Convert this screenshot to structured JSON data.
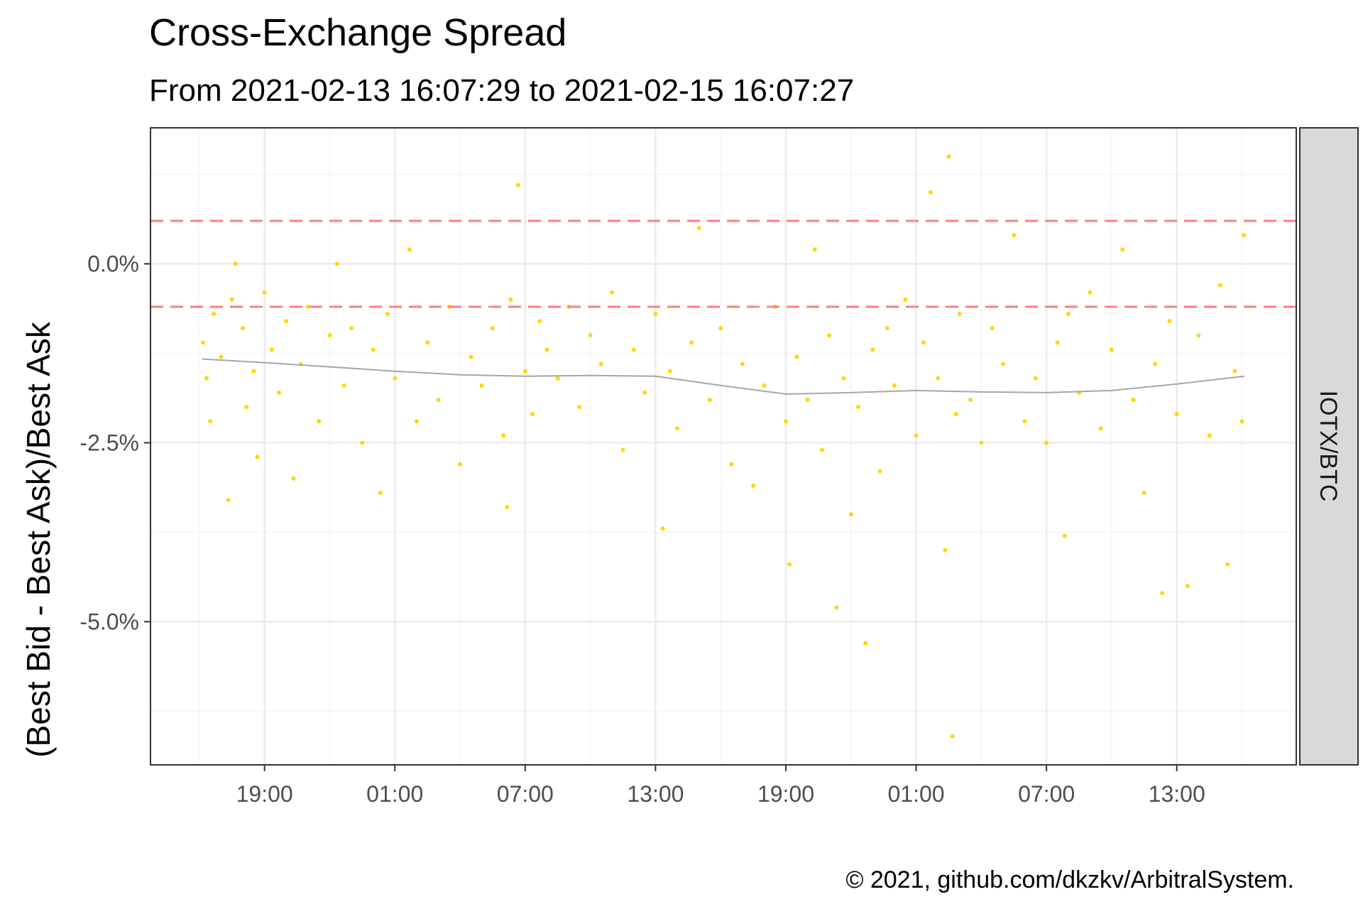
{
  "chart_data": {
    "type": "scatter",
    "title": "Cross-Exchange Spread",
    "subtitle": "From 2021-02-13 16:07:29 to 2021-02-15 16:07:27",
    "xlabel": "",
    "ylabel": "(Best Bid - Best Ask)/Best Ask",
    "facet_label": "IOTX/BTC",
    "caption": "© 2021, github.com/dkzkv/ArbitralSystem.",
    "x_start": "2021-02-13 16:07:29",
    "x_end": "2021-02-15 16:07:27",
    "x_range": [
      "2021-02-13 13:45",
      "2021-02-15 18:30"
    ],
    "y_range": [
      -7.0,
      1.9
    ],
    "y_ticks": [
      {
        "value": 0.0,
        "label": "0.0%"
      },
      {
        "value": -2.5,
        "label": "-2.5%"
      },
      {
        "value": -5.0,
        "label": "-5.0%"
      }
    ],
    "x_ticks": [
      {
        "time": "2021-02-13 19:00",
        "label": "19:00"
      },
      {
        "time": "2021-02-14 01:00",
        "label": "01:00"
      },
      {
        "time": "2021-02-14 07:00",
        "label": "07:00"
      },
      {
        "time": "2021-02-14 13:00",
        "label": "13:00"
      },
      {
        "time": "2021-02-14 19:00",
        "label": "19:00"
      },
      {
        "time": "2021-02-15 01:00",
        "label": "01:00"
      },
      {
        "time": "2021-02-15 07:00",
        "label": "07:00"
      },
      {
        "time": "2021-02-15 13:00",
        "label": "13:00"
      }
    ],
    "reference_lines": [
      0.6,
      -0.6
    ],
    "point_color": "#FFD700",
    "smooth_color": "#a6a6a6",
    "reference_color": "#ff7f7f",
    "grid": true,
    "legend": "none",
    "smooth": [
      {
        "time": "2021-02-13 16:07",
        "value": -1.33
      },
      {
        "time": "2021-02-13 19:00",
        "value": -1.38
      },
      {
        "time": "2021-02-13 22:00",
        "value": -1.44
      },
      {
        "time": "2021-02-14 01:00",
        "value": -1.5
      },
      {
        "time": "2021-02-14 04:00",
        "value": -1.55
      },
      {
        "time": "2021-02-14 07:00",
        "value": -1.57
      },
      {
        "time": "2021-02-14 10:00",
        "value": -1.56
      },
      {
        "time": "2021-02-14 13:00",
        "value": -1.57
      },
      {
        "time": "2021-02-14 16:00",
        "value": -1.7
      },
      {
        "time": "2021-02-14 19:00",
        "value": -1.82
      },
      {
        "time": "2021-02-14 22:00",
        "value": -1.8
      },
      {
        "time": "2021-02-15 01:00",
        "value": -1.77
      },
      {
        "time": "2021-02-15 04:00",
        "value": -1.79
      },
      {
        "time": "2021-02-15 07:00",
        "value": -1.8
      },
      {
        "time": "2021-02-15 10:00",
        "value": -1.77
      },
      {
        "time": "2021-02-15 13:00",
        "value": -1.68
      },
      {
        "time": "2021-02-15 16:07",
        "value": -1.57
      }
    ],
    "series": [
      {
        "points": [
          [
            "2021-02-13 16:10",
            -1.1
          ],
          [
            "2021-02-13 16:20",
            -1.6
          ],
          [
            "2021-02-13 16:30",
            -2.2
          ],
          [
            "2021-02-13 16:40",
            -0.7
          ],
          [
            "2021-02-13 17:00",
            -1.3
          ],
          [
            "2021-02-13 17:20",
            -3.3
          ],
          [
            "2021-02-13 17:30",
            -0.5
          ],
          [
            "2021-02-13 17:40",
            0.0
          ],
          [
            "2021-02-13 18:00",
            -0.9
          ],
          [
            "2021-02-13 18:10",
            -2.0
          ],
          [
            "2021-02-13 18:30",
            -1.5
          ],
          [
            "2021-02-13 18:40",
            -2.7
          ],
          [
            "2021-02-13 19:00",
            -0.4
          ],
          [
            "2021-02-13 19:20",
            -1.2
          ],
          [
            "2021-02-13 19:40",
            -1.8
          ],
          [
            "2021-02-13 20:00",
            -0.8
          ],
          [
            "2021-02-13 20:20",
            -3.0
          ],
          [
            "2021-02-13 20:40",
            -1.4
          ],
          [
            "2021-02-13 21:00",
            -0.6
          ],
          [
            "2021-02-13 21:30",
            -2.2
          ],
          [
            "2021-02-13 22:00",
            -1.0
          ],
          [
            "2021-02-13 22:20",
            0.0
          ],
          [
            "2021-02-13 22:40",
            -1.7
          ],
          [
            "2021-02-13 23:00",
            -0.9
          ],
          [
            "2021-02-13 23:30",
            -2.5
          ],
          [
            "2021-02-14 00:00",
            -1.2
          ],
          [
            "2021-02-14 00:20",
            -3.2
          ],
          [
            "2021-02-14 00:40",
            -0.7
          ],
          [
            "2021-02-14 01:00",
            -1.6
          ],
          [
            "2021-02-14 01:40",
            0.2
          ],
          [
            "2021-02-14 02:00",
            -2.2
          ],
          [
            "2021-02-14 02:30",
            -1.1
          ],
          [
            "2021-02-14 03:00",
            -1.9
          ],
          [
            "2021-02-14 03:30",
            -0.6
          ],
          [
            "2021-02-14 04:00",
            -2.8
          ],
          [
            "2021-02-14 04:30",
            -1.3
          ],
          [
            "2021-02-14 05:00",
            -1.7
          ],
          [
            "2021-02-14 05:30",
            -0.9
          ],
          [
            "2021-02-14 06:00",
            -2.4
          ],
          [
            "2021-02-14 06:10",
            -3.4
          ],
          [
            "2021-02-14 06:20",
            -0.5
          ],
          [
            "2021-02-14 06:40",
            1.1
          ],
          [
            "2021-02-14 07:00",
            -1.5
          ],
          [
            "2021-02-14 07:20",
            -2.1
          ],
          [
            "2021-02-14 07:40",
            -0.8
          ],
          [
            "2021-02-14 08:00",
            -1.2
          ],
          [
            "2021-02-14 08:30",
            -1.6
          ],
          [
            "2021-02-14 09:00",
            -0.6
          ],
          [
            "2021-02-14 09:30",
            -2.0
          ],
          [
            "2021-02-14 10:00",
            -1.0
          ],
          [
            "2021-02-14 10:30",
            -1.4
          ],
          [
            "2021-02-14 11:00",
            -0.4
          ],
          [
            "2021-02-14 11:30",
            -2.6
          ],
          [
            "2021-02-14 12:00",
            -1.2
          ],
          [
            "2021-02-14 12:30",
            -1.8
          ],
          [
            "2021-02-14 13:00",
            -0.7
          ],
          [
            "2021-02-14 13:20",
            -3.7
          ],
          [
            "2021-02-14 13:40",
            -1.5
          ],
          [
            "2021-02-14 14:00",
            -2.3
          ],
          [
            "2021-02-14 14:40",
            -1.1
          ],
          [
            "2021-02-14 15:00",
            0.5
          ],
          [
            "2021-02-14 15:30",
            -1.9
          ],
          [
            "2021-02-14 16:00",
            -0.9
          ],
          [
            "2021-02-14 16:30",
            -2.8
          ],
          [
            "2021-02-14 17:00",
            -1.4
          ],
          [
            "2021-02-14 17:30",
            -3.1
          ],
          [
            "2021-02-14 18:00",
            -1.7
          ],
          [
            "2021-02-14 18:30",
            -0.6
          ],
          [
            "2021-02-14 19:00",
            -2.2
          ],
          [
            "2021-02-14 19:10",
            -4.2
          ],
          [
            "2021-02-14 19:30",
            -1.3
          ],
          [
            "2021-02-14 20:00",
            -1.9
          ],
          [
            "2021-02-14 20:20",
            0.2
          ],
          [
            "2021-02-14 20:40",
            -2.6
          ],
          [
            "2021-02-14 21:00",
            -1.0
          ],
          [
            "2021-02-14 21:20",
            -4.8
          ],
          [
            "2021-02-14 21:40",
            -1.6
          ],
          [
            "2021-02-14 22:00",
            -3.5
          ],
          [
            "2021-02-14 22:20",
            -2.0
          ],
          [
            "2021-02-14 22:40",
            -5.3
          ],
          [
            "2021-02-14 23:00",
            -1.2
          ],
          [
            "2021-02-14 23:20",
            -2.9
          ],
          [
            "2021-02-14 23:40",
            -0.9
          ],
          [
            "2021-02-15 00:00",
            -1.7
          ],
          [
            "2021-02-15 00:30",
            -0.5
          ],
          [
            "2021-02-15 01:00",
            -2.4
          ],
          [
            "2021-02-15 01:20",
            -1.1
          ],
          [
            "2021-02-15 01:40",
            1.0
          ],
          [
            "2021-02-15 02:00",
            -1.6
          ],
          [
            "2021-02-15 02:20",
            -4.0
          ],
          [
            "2021-02-15 02:30",
            1.5
          ],
          [
            "2021-02-15 02:40",
            -6.6
          ],
          [
            "2021-02-15 02:50",
            -2.1
          ],
          [
            "2021-02-15 03:00",
            -0.7
          ],
          [
            "2021-02-15 03:30",
            -1.9
          ],
          [
            "2021-02-15 04:00",
            -2.5
          ],
          [
            "2021-02-15 04:30",
            -0.9
          ],
          [
            "2021-02-15 05:00",
            -1.4
          ],
          [
            "2021-02-15 05:30",
            0.4
          ],
          [
            "2021-02-15 06:00",
            -2.2
          ],
          [
            "2021-02-15 06:30",
            -1.6
          ],
          [
            "2021-02-15 07:00",
            -2.5
          ],
          [
            "2021-02-15 07:30",
            -1.1
          ],
          [
            "2021-02-15 07:50",
            -3.8
          ],
          [
            "2021-02-15 08:00",
            -0.7
          ],
          [
            "2021-02-15 08:30",
            -1.8
          ],
          [
            "2021-02-15 09:00",
            -0.4
          ],
          [
            "2021-02-15 09:30",
            -2.3
          ],
          [
            "2021-02-15 10:00",
            -1.2
          ],
          [
            "2021-02-15 10:30",
            0.2
          ],
          [
            "2021-02-15 11:00",
            -1.9
          ],
          [
            "2021-02-15 11:30",
            -3.2
          ],
          [
            "2021-02-15 12:00",
            -1.4
          ],
          [
            "2021-02-15 12:20",
            -4.6
          ],
          [
            "2021-02-15 12:40",
            -0.8
          ],
          [
            "2021-02-15 13:00",
            -2.1
          ],
          [
            "2021-02-15 13:30",
            -4.5
          ],
          [
            "2021-02-15 14:00",
            -1.0
          ],
          [
            "2021-02-15 14:30",
            -2.4
          ],
          [
            "2021-02-15 15:00",
            -0.3
          ],
          [
            "2021-02-15 15:20",
            -4.2
          ],
          [
            "2021-02-15 15:40",
            -1.5
          ],
          [
            "2021-02-15 16:00",
            -2.2
          ],
          [
            "2021-02-15 16:05",
            0.4
          ]
        ]
      }
    ]
  }
}
